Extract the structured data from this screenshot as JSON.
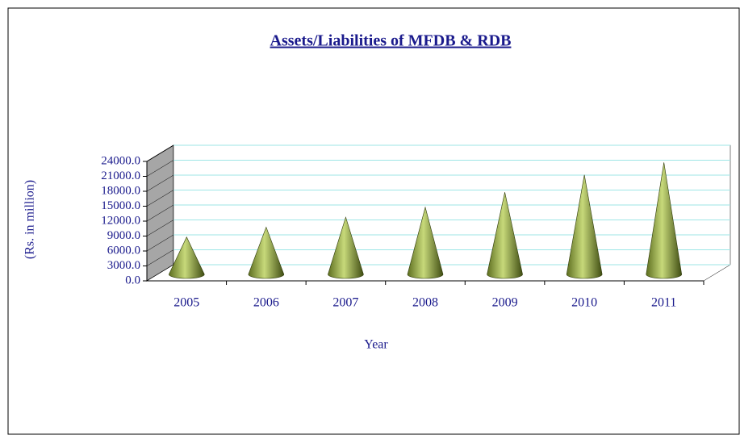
{
  "chart_data": {
    "type": "cone",
    "title": "Assets/Liabilities of MFDB & RDB",
    "x_label": "Year",
    "y_label": "(Rs. in million)",
    "categories": [
      "2005",
      "2006",
      "2007",
      "2008",
      "2009",
      "2010",
      "2011"
    ],
    "values": [
      7500,
      9500,
      11500,
      13500,
      16500,
      20000,
      22500
    ],
    "color": "#8fa83a",
    "ylim": [
      0,
      24000
    ],
    "yticks": [
      {
        "value": 0,
        "label": "0.0"
      },
      {
        "value": 3000,
        "label": "3000.0"
      },
      {
        "value": 6000,
        "label": "6000.0"
      },
      {
        "value": 9000,
        "label": "9000.0"
      },
      {
        "value": 12000,
        "label": "12000.0"
      },
      {
        "value": 15000,
        "label": "15000.0"
      },
      {
        "value": 18000,
        "label": "18000.0"
      },
      {
        "value": 21000,
        "label": "21000.0"
      },
      {
        "value": 24000,
        "label": "24000.0"
      }
    ],
    "grid": true
  }
}
